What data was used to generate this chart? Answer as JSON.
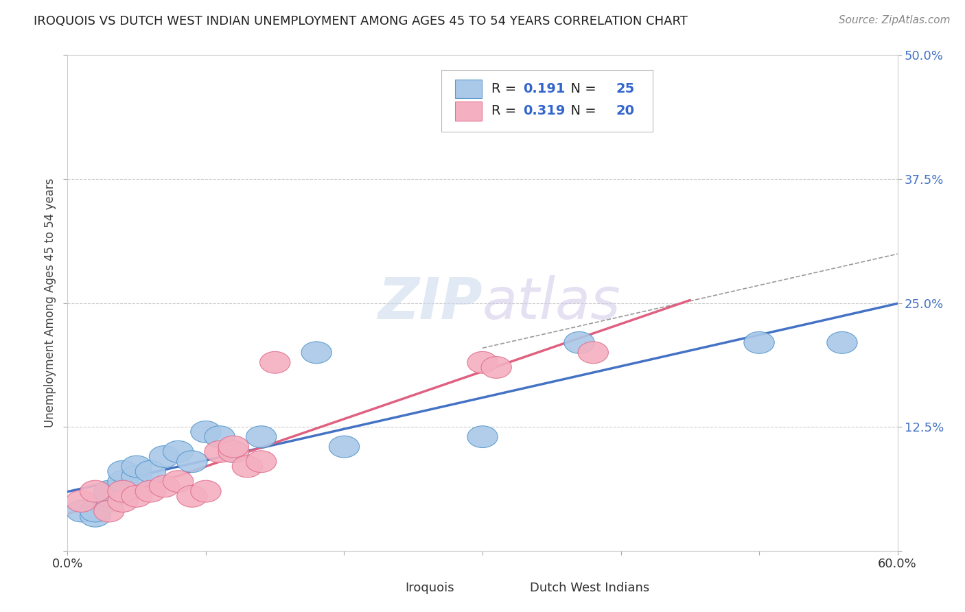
{
  "title": "IROQUOIS VS DUTCH WEST INDIAN UNEMPLOYMENT AMONG AGES 45 TO 54 YEARS CORRELATION CHART",
  "source": "Source: ZipAtlas.com",
  "ylabel": "Unemployment Among Ages 45 to 54 years",
  "xlim": [
    0.0,
    0.6
  ],
  "ylim": [
    0.0,
    0.5
  ],
  "xticks": [
    0.0,
    0.1,
    0.2,
    0.3,
    0.4,
    0.5,
    0.6
  ],
  "yticks": [
    0.0,
    0.125,
    0.25,
    0.375,
    0.5
  ],
  "ytick_labels": [
    "",
    "12.5%",
    "25.0%",
    "37.5%",
    "50.0%"
  ],
  "xtick_labels": [
    "0.0%",
    "",
    "",
    "",
    "",
    "",
    "60.0%"
  ],
  "iroquois_x": [
    0.01,
    0.02,
    0.02,
    0.03,
    0.03,
    0.03,
    0.04,
    0.04,
    0.04,
    0.05,
    0.05,
    0.06,
    0.07,
    0.08,
    0.09,
    0.1,
    0.11,
    0.12,
    0.14,
    0.18,
    0.2,
    0.3,
    0.37,
    0.5,
    0.56
  ],
  "iroquois_y": [
    0.04,
    0.035,
    0.04,
    0.05,
    0.055,
    0.06,
    0.06,
    0.07,
    0.08,
    0.075,
    0.085,
    0.08,
    0.095,
    0.1,
    0.09,
    0.12,
    0.115,
    0.1,
    0.115,
    0.2,
    0.105,
    0.115,
    0.21,
    0.21,
    0.21
  ],
  "dutch_x": [
    0.01,
    0.02,
    0.03,
    0.04,
    0.04,
    0.05,
    0.06,
    0.07,
    0.08,
    0.09,
    0.1,
    0.11,
    0.12,
    0.12,
    0.13,
    0.14,
    0.15,
    0.3,
    0.31,
    0.38
  ],
  "dutch_y": [
    0.05,
    0.06,
    0.04,
    0.05,
    0.06,
    0.055,
    0.06,
    0.065,
    0.07,
    0.055,
    0.06,
    0.1,
    0.1,
    0.105,
    0.085,
    0.09,
    0.19,
    0.19,
    0.185,
    0.2
  ],
  "iroquois_color": "#aac8e8",
  "iroquois_edge": "#5599cc",
  "dutch_color": "#f4b0c0",
  "dutch_edge": "#e07090",
  "iroquois_R": 0.191,
  "iroquois_N": 25,
  "dutch_R": 0.319,
  "dutch_N": 20,
  "trend_blue": "#4472c4",
  "trend_pink": "#e06080",
  "trend_blue_dashed": "#aac8e8",
  "legend_R_N_color": "#3366cc",
  "watermark_color": "#d8e8f4",
  "background_color": "#ffffff",
  "grid_color": "#cccccc",
  "title_fontsize": 13,
  "source_fontsize": 11,
  "tick_fontsize": 13,
  "ylabel_fontsize": 12
}
